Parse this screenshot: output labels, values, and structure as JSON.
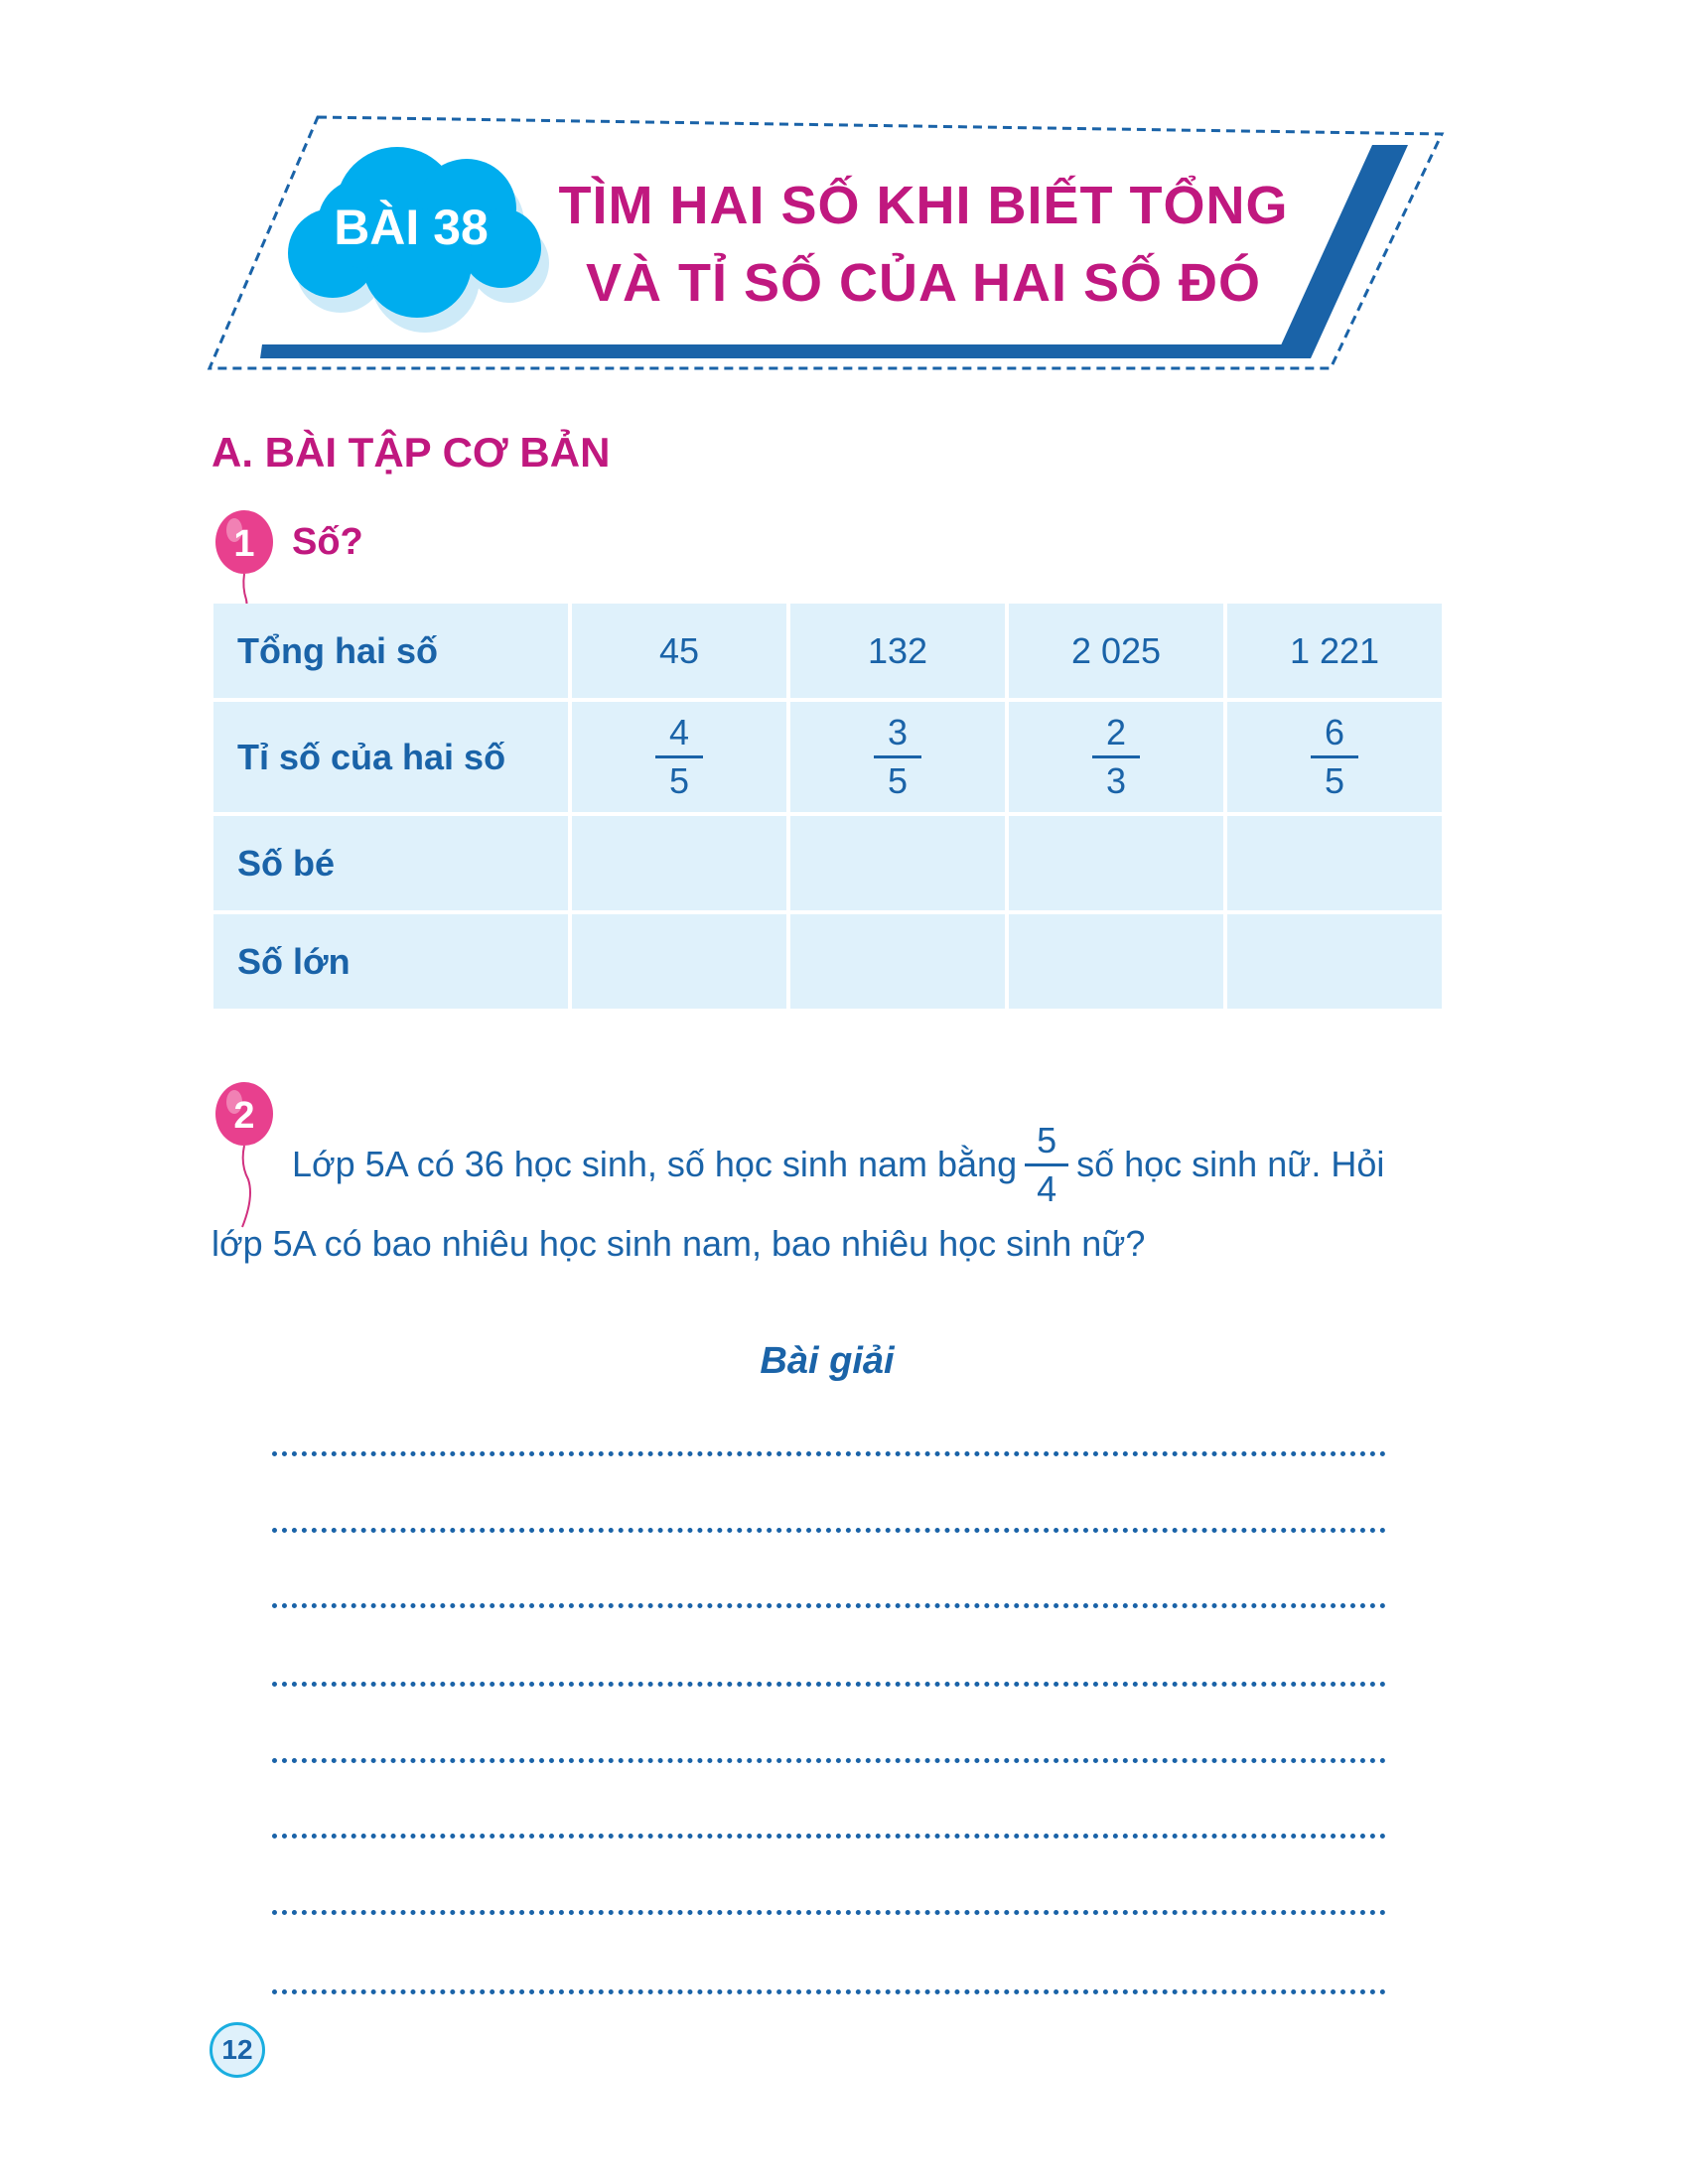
{
  "lesson": {
    "badge": "BÀI 38",
    "title_line1": "TÌM HAI SỐ KHI BIẾT TỔNG",
    "title_line2": "VÀ TỈ SỐ CỦA HAI SỐ ĐÓ"
  },
  "section_title": "A. BÀI TẬP CƠ BẢN",
  "exercise1": {
    "number": "1",
    "label": "Số?",
    "table": {
      "rows": [
        {
          "label": "Tổng hai số",
          "values": [
            "45",
            "132",
            "2 025",
            "1 221"
          ]
        },
        {
          "label": "Tỉ số của hai số",
          "fractions": [
            [
              "4",
              "5"
            ],
            [
              "3",
              "5"
            ],
            [
              "2",
              "3"
            ],
            [
              "6",
              "5"
            ]
          ]
        },
        {
          "label": "Số bé",
          "values": [
            "",
            "",
            "",
            ""
          ]
        },
        {
          "label": "Số lớn",
          "values": [
            "",
            "",
            "",
            ""
          ]
        }
      ]
    }
  },
  "exercise2": {
    "number": "2",
    "text_before": "Lớp 5A có 36 học sinh, số học sinh nam bằng",
    "fraction": [
      "5",
      "4"
    ],
    "text_after": "số học sinh nữ. Hỏi",
    "line2": "lớp 5A có bao nhiêu học sinh nam, bao nhiêu học sinh nữ?"
  },
  "solution_label": "Bài giải",
  "answer_lines": 8,
  "page_number": "12",
  "colors": {
    "magenta": "#c0187f",
    "blue": "#1a63a8",
    "cloud": "#00adee",
    "table_bg": "#dff1fb"
  }
}
